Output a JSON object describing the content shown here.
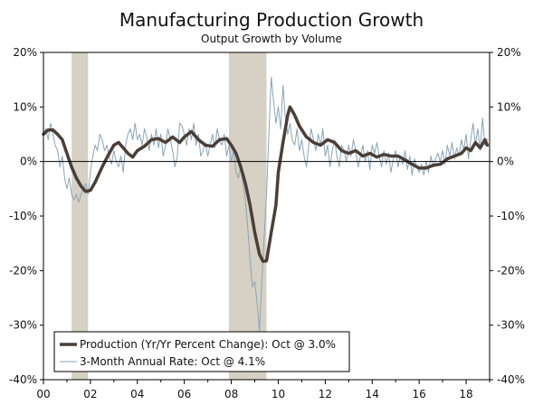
{
  "chart_data": {
    "type": "line",
    "title": "Manufacturing Production Growth",
    "subtitle": "Output Growth by Volume",
    "xlabel": "",
    "ylabel": "",
    "xlim": [
      2000.0,
      2019.0
    ],
    "ylim": [
      -40,
      20
    ],
    "grid": false,
    "legend_position": "bottom-left",
    "x_ticks": [
      {
        "value": 2000,
        "label": "00"
      },
      {
        "value": 2002,
        "label": "02"
      },
      {
        "value": 2004,
        "label": "04"
      },
      {
        "value": 2006,
        "label": "06"
      },
      {
        "value": 2008,
        "label": "08"
      },
      {
        "value": 2010,
        "label": "10"
      },
      {
        "value": 2012,
        "label": "12"
      },
      {
        "value": 2014,
        "label": "14"
      },
      {
        "value": 2016,
        "label": "16"
      },
      {
        "value": 2018,
        "label": "18"
      }
    ],
    "y_ticks": [
      {
        "value": 20,
        "label": "20%"
      },
      {
        "value": 10,
        "label": "10%"
      },
      {
        "value": 0,
        "label": "0%"
      },
      {
        "value": -10,
        "label": "-10%"
      },
      {
        "value": -20,
        "label": "-20%"
      },
      {
        "value": -30,
        "label": "-30%"
      },
      {
        "value": -40,
        "label": "-40%"
      }
    ],
    "recessions": [
      {
        "start": 2001.2,
        "end": 2001.9
      },
      {
        "start": 2007.9,
        "end": 2009.5
      }
    ],
    "series": [
      {
        "name": "Production (Yr/Yr Percent Change): Oct @ 3.0%",
        "color": "#4a3f37",
        "points": [
          [
            2000.0,
            5.0
          ],
          [
            2000.2,
            5.8
          ],
          [
            2000.4,
            5.8
          ],
          [
            2000.6,
            5.0
          ],
          [
            2000.8,
            4.0
          ],
          [
            2001.0,
            1.5
          ],
          [
            2001.2,
            -1.0
          ],
          [
            2001.4,
            -3.0
          ],
          [
            2001.6,
            -4.5
          ],
          [
            2001.8,
            -5.5
          ],
          [
            2002.0,
            -5.3
          ],
          [
            2002.2,
            -3.8
          ],
          [
            2002.5,
            -1.0
          ],
          [
            2002.8,
            1.5
          ],
          [
            2003.0,
            3.0
          ],
          [
            2003.2,
            3.5
          ],
          [
            2003.4,
            2.5
          ],
          [
            2003.6,
            1.5
          ],
          [
            2003.8,
            0.8
          ],
          [
            2004.0,
            2.0
          ],
          [
            2004.3,
            2.8
          ],
          [
            2004.6,
            4.0
          ],
          [
            2004.9,
            4.2
          ],
          [
            2005.2,
            3.5
          ],
          [
            2005.5,
            4.5
          ],
          [
            2005.8,
            3.5
          ],
          [
            2006.0,
            4.5
          ],
          [
            2006.3,
            5.5
          ],
          [
            2006.6,
            4.0
          ],
          [
            2006.9,
            3.0
          ],
          [
            2007.2,
            2.8
          ],
          [
            2007.5,
            4.0
          ],
          [
            2007.8,
            4.2
          ],
          [
            2008.0,
            3.0
          ],
          [
            2008.2,
            1.5
          ],
          [
            2008.4,
            -1.0
          ],
          [
            2008.6,
            -4.0
          ],
          [
            2008.8,
            -8.0
          ],
          [
            2009.0,
            -13.0
          ],
          [
            2009.2,
            -17.0
          ],
          [
            2009.35,
            -18.3
          ],
          [
            2009.5,
            -18.2
          ],
          [
            2009.7,
            -13.0
          ],
          [
            2009.9,
            -8.0
          ],
          [
            2010.0,
            -2.0
          ],
          [
            2010.2,
            3.5
          ],
          [
            2010.4,
            8.5
          ],
          [
            2010.5,
            10.0
          ],
          [
            2010.7,
            8.5
          ],
          [
            2010.9,
            6.5
          ],
          [
            2011.2,
            4.5
          ],
          [
            2011.5,
            3.5
          ],
          [
            2011.8,
            3.0
          ],
          [
            2012.1,
            4.0
          ],
          [
            2012.4,
            3.5
          ],
          [
            2012.7,
            2.0
          ],
          [
            2013.0,
            1.5
          ],
          [
            2013.3,
            2.0
          ],
          [
            2013.6,
            1.0
          ],
          [
            2013.9,
            1.5
          ],
          [
            2014.2,
            0.8
          ],
          [
            2014.5,
            1.3
          ],
          [
            2014.8,
            1.0
          ],
          [
            2015.1,
            1.0
          ],
          [
            2015.4,
            0.3
          ],
          [
            2015.7,
            -0.5
          ],
          [
            2016.0,
            -1.2
          ],
          [
            2016.3,
            -1.2
          ],
          [
            2016.6,
            -0.7
          ],
          [
            2016.9,
            -0.5
          ],
          [
            2017.2,
            0.5
          ],
          [
            2017.5,
            1.0
          ],
          [
            2017.8,
            1.5
          ],
          [
            2018.0,
            2.5
          ],
          [
            2018.2,
            2.0
          ],
          [
            2018.4,
            3.5
          ],
          [
            2018.6,
            2.5
          ],
          [
            2018.8,
            4.0
          ],
          [
            2018.9,
            3.0
          ]
        ]
      },
      {
        "name": "3-Month Annual Rate: Oct @ 4.1%",
        "color": "#8aa4b8",
        "points": [
          [
            2000.0,
            5.0
          ],
          [
            2000.1,
            6.0
          ],
          [
            2000.2,
            4.0
          ],
          [
            2000.3,
            7.0
          ],
          [
            2000.4,
            5.0
          ],
          [
            2000.5,
            3.0
          ],
          [
            2000.6,
            2.0
          ],
          [
            2000.7,
            -1.0
          ],
          [
            2000.8,
            1.0
          ],
          [
            2000.9,
            -3.0
          ],
          [
            2001.0,
            -5.0
          ],
          [
            2001.1,
            -3.0
          ],
          [
            2001.2,
            -6.0
          ],
          [
            2001.3,
            -7.0
          ],
          [
            2001.4,
            -6.0
          ],
          [
            2001.5,
            -7.5
          ],
          [
            2001.6,
            -6.0
          ],
          [
            2001.7,
            -5.0
          ],
          [
            2001.8,
            -4.0
          ],
          [
            2001.9,
            -6.0
          ],
          [
            2002.0,
            -2.0
          ],
          [
            2002.1,
            1.0
          ],
          [
            2002.2,
            3.0
          ],
          [
            2002.3,
            2.0
          ],
          [
            2002.4,
            5.0
          ],
          [
            2002.5,
            4.0
          ],
          [
            2002.6,
            2.0
          ],
          [
            2002.7,
            3.0
          ],
          [
            2002.8,
            1.0
          ],
          [
            2002.9,
            -0.5
          ],
          [
            2003.0,
            2.0
          ],
          [
            2003.1,
            0.0
          ],
          [
            2003.2,
            -1.0
          ],
          [
            2003.3,
            1.0
          ],
          [
            2003.4,
            -2.0
          ],
          [
            2003.5,
            3.0
          ],
          [
            2003.6,
            5.0
          ],
          [
            2003.7,
            6.0
          ],
          [
            2003.8,
            4.0
          ],
          [
            2003.9,
            7.0
          ],
          [
            2004.0,
            4.0
          ],
          [
            2004.1,
            5.0
          ],
          [
            2004.2,
            3.0
          ],
          [
            2004.3,
            6.0
          ],
          [
            2004.4,
            4.5
          ],
          [
            2004.5,
            2.0
          ],
          [
            2004.6,
            5.0
          ],
          [
            2004.7,
            3.0
          ],
          [
            2004.8,
            6.0
          ],
          [
            2004.9,
            2.5
          ],
          [
            2005.0,
            5.0
          ],
          [
            2005.1,
            1.0
          ],
          [
            2005.2,
            3.0
          ],
          [
            2005.3,
            6.0
          ],
          [
            2005.4,
            4.0
          ],
          [
            2005.5,
            2.0
          ],
          [
            2005.6,
            -1.0
          ],
          [
            2005.7,
            1.0
          ],
          [
            2005.8,
            7.0
          ],
          [
            2005.9,
            6.5
          ],
          [
            2006.0,
            5.0
          ],
          [
            2006.1,
            3.0
          ],
          [
            2006.2,
            6.0
          ],
          [
            2006.3,
            4.0
          ],
          [
            2006.4,
            7.0
          ],
          [
            2006.5,
            3.0
          ],
          [
            2006.6,
            5.0
          ],
          [
            2006.7,
            1.0
          ],
          [
            2006.8,
            2.0
          ],
          [
            2006.9,
            3.5
          ],
          [
            2007.0,
            1.0
          ],
          [
            2007.1,
            3.0
          ],
          [
            2007.2,
            5.0
          ],
          [
            2007.3,
            2.5
          ],
          [
            2007.4,
            6.0
          ],
          [
            2007.5,
            4.0
          ],
          [
            2007.6,
            3.0
          ],
          [
            2007.7,
            5.0
          ],
          [
            2007.8,
            1.0
          ],
          [
            2007.9,
            3.0
          ],
          [
            2008.0,
            0.0
          ],
          [
            2008.1,
            2.0
          ],
          [
            2008.2,
            -2.0
          ],
          [
            2008.3,
            -3.0
          ],
          [
            2008.4,
            -1.0
          ],
          [
            2008.5,
            -4.0
          ],
          [
            2008.6,
            -7.0
          ],
          [
            2008.7,
            -12.0
          ],
          [
            2008.8,
            -18.0
          ],
          [
            2008.9,
            -23.0
          ],
          [
            2009.0,
            -22.0
          ],
          [
            2009.1,
            -26.0
          ],
          [
            2009.2,
            -31.0
          ],
          [
            2009.3,
            -22.0
          ],
          [
            2009.4,
            -14.0
          ],
          [
            2009.5,
            -6.0
          ],
          [
            2009.6,
            5.0
          ],
          [
            2009.7,
            15.5
          ],
          [
            2009.8,
            11.0
          ],
          [
            2009.9,
            7.0
          ],
          [
            2010.0,
            10.0
          ],
          [
            2010.1,
            6.0
          ],
          [
            2010.2,
            14.0
          ],
          [
            2010.3,
            8.0
          ],
          [
            2010.4,
            5.0
          ],
          [
            2010.5,
            7.0
          ],
          [
            2010.6,
            4.0
          ],
          [
            2010.7,
            3.0
          ],
          [
            2010.8,
            6.0
          ],
          [
            2010.9,
            2.0
          ],
          [
            2011.0,
            4.0
          ],
          [
            2011.1,
            1.0
          ],
          [
            2011.2,
            -1.0
          ],
          [
            2011.3,
            3.0
          ],
          [
            2011.4,
            6.0
          ],
          [
            2011.5,
            4.0
          ],
          [
            2011.6,
            2.0
          ],
          [
            2011.7,
            5.0
          ],
          [
            2011.8,
            3.0
          ],
          [
            2011.9,
            6.0
          ],
          [
            2012.0,
            1.0
          ],
          [
            2012.1,
            3.0
          ],
          [
            2012.2,
            -1.0
          ],
          [
            2012.3,
            2.0
          ],
          [
            2012.4,
            4.0
          ],
          [
            2012.5,
            1.0
          ],
          [
            2012.6,
            -1.0
          ],
          [
            2012.7,
            3.0
          ],
          [
            2012.8,
            2.0
          ],
          [
            2012.9,
            0.0
          ],
          [
            2013.0,
            3.0
          ],
          [
            2013.1,
            1.0
          ],
          [
            2013.2,
            4.0
          ],
          [
            2013.3,
            2.0
          ],
          [
            2013.4,
            -1.0
          ],
          [
            2013.5,
            1.0
          ],
          [
            2013.6,
            3.0
          ],
          [
            2013.7,
            0.0
          ],
          [
            2013.8,
            2.0
          ],
          [
            2013.9,
            -1.5
          ],
          [
            2014.0,
            3.0
          ],
          [
            2014.1,
            1.5
          ],
          [
            2014.2,
            3.5
          ],
          [
            2014.3,
            1.0
          ],
          [
            2014.4,
            -1.0
          ],
          [
            2014.5,
            2.0
          ],
          [
            2014.6,
            -0.5
          ],
          [
            2014.7,
            1.5
          ],
          [
            2014.8,
            -2.0
          ],
          [
            2014.9,
            0.5
          ],
          [
            2015.0,
            2.0
          ],
          [
            2015.1,
            -1.0
          ],
          [
            2015.2,
            1.0
          ],
          [
            2015.3,
            -0.5
          ],
          [
            2015.4,
            2.0
          ],
          [
            2015.5,
            -1.5
          ],
          [
            2015.6,
            1.0
          ],
          [
            2015.7,
            -2.5
          ],
          [
            2015.8,
            0.5
          ],
          [
            2015.9,
            -1.0
          ],
          [
            2016.0,
            -2.0
          ],
          [
            2016.1,
            -0.5
          ],
          [
            2016.2,
            -2.5
          ],
          [
            2016.3,
            0.0
          ],
          [
            2016.4,
            -2.0
          ],
          [
            2016.5,
            1.0
          ],
          [
            2016.6,
            -1.0
          ],
          [
            2016.7,
            0.5
          ],
          [
            2016.8,
            1.5
          ],
          [
            2016.9,
            0.0
          ],
          [
            2017.0,
            2.0
          ],
          [
            2017.1,
            -0.5
          ],
          [
            2017.2,
            3.0
          ],
          [
            2017.3,
            1.0
          ],
          [
            2017.4,
            3.5
          ],
          [
            2017.5,
            0.5
          ],
          [
            2017.6,
            2.5
          ],
          [
            2017.7,
            1.0
          ],
          [
            2017.8,
            4.0
          ],
          [
            2017.9,
            2.0
          ],
          [
            2018.0,
            5.0
          ],
          [
            2018.1,
            0.5
          ],
          [
            2018.2,
            4.0
          ],
          [
            2018.3,
            7.0
          ],
          [
            2018.4,
            3.0
          ],
          [
            2018.5,
            6.0
          ],
          [
            2018.6,
            2.0
          ],
          [
            2018.7,
            8.0
          ],
          [
            2018.8,
            3.0
          ],
          [
            2018.9,
            4.1
          ]
        ]
      }
    ]
  }
}
